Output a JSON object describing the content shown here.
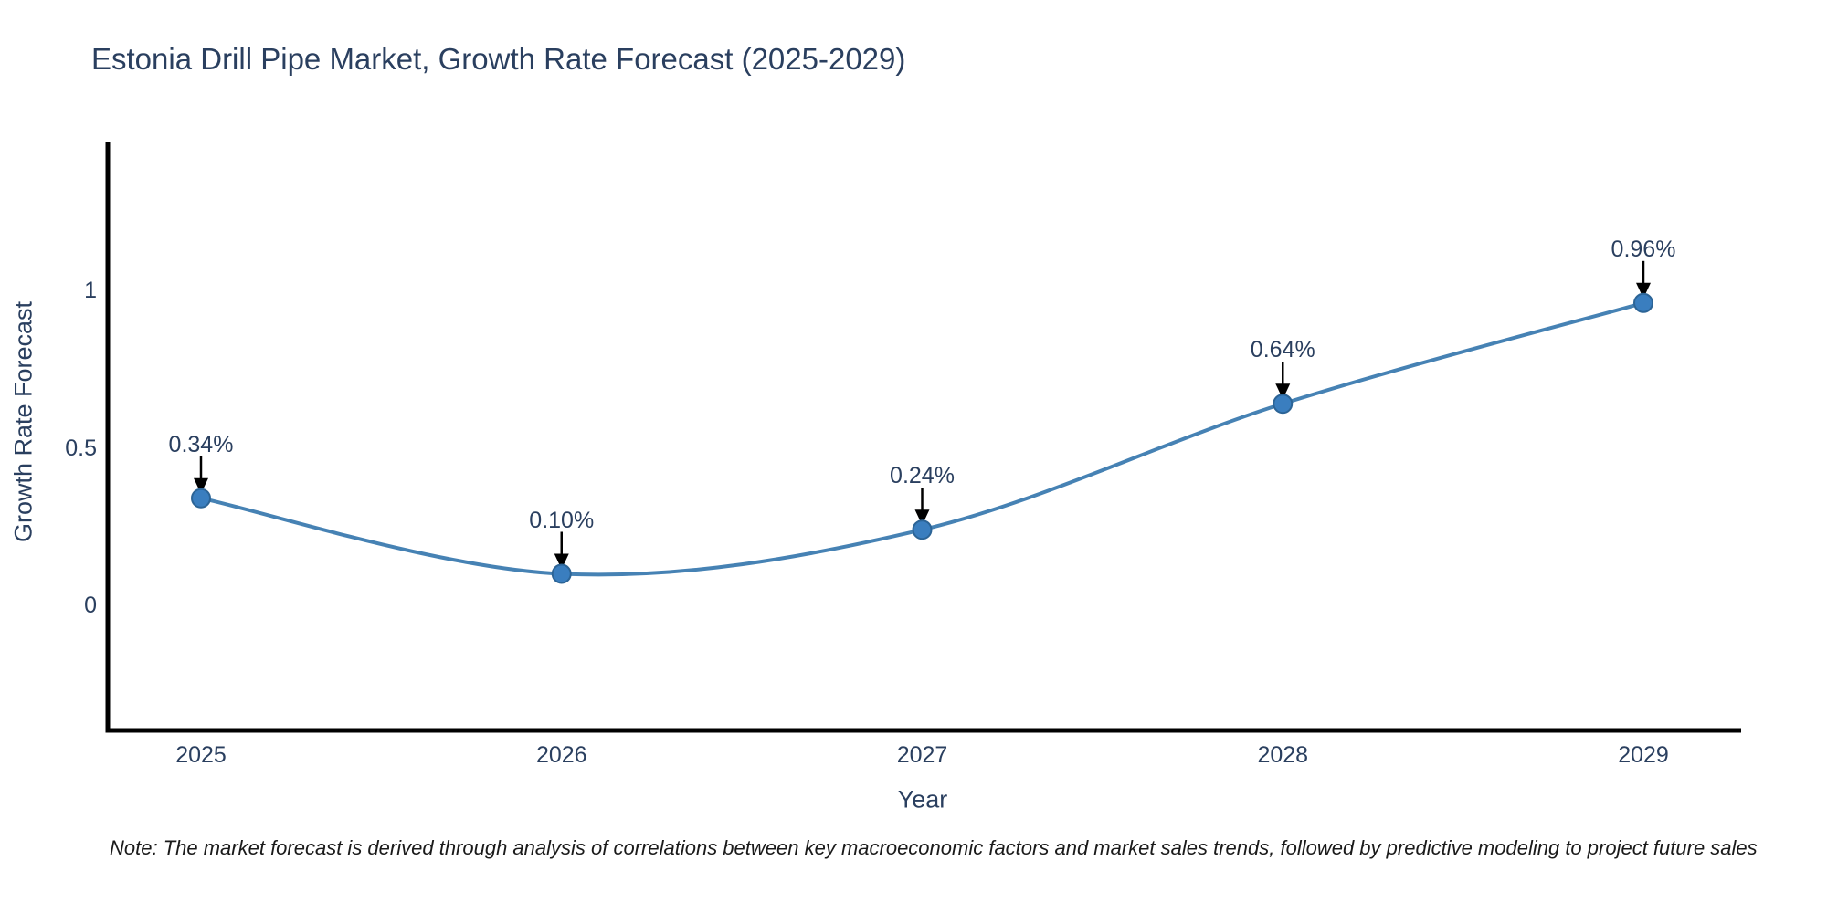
{
  "title": "Estonia Drill Pipe Market, Growth Rate Forecast (2025-2029)",
  "note": "Note: The market forecast is derived through analysis of correlations between key macroeconomic factors and market sales trends, followed by predictive modeling to project future sales",
  "chart_data": {
    "type": "line",
    "line_shape": "spline",
    "title": "Estonia Drill Pipe Market, Growth Rate Forecast (2025-2029)",
    "xlabel": "Year",
    "ylabel": "Growth Rate Forecast",
    "x": [
      2025,
      2026,
      2027,
      2028,
      2029
    ],
    "y": [
      0.34,
      0.1,
      0.24,
      0.64,
      0.96
    ],
    "series": [
      {
        "name": "Growth Rate Forecast",
        "values": [
          0.34,
          0.1,
          0.24,
          0.64,
          0.96
        ]
      }
    ],
    "point_labels": [
      "0.34%",
      "0.10%",
      "0.24%",
      "0.64%",
      "0.96%"
    ],
    "xtick_labels": [
      "2025",
      "2026",
      "2027",
      "2028",
      "2029"
    ],
    "yticks": [
      0,
      0.5,
      1
    ],
    "ytick_labels": [
      "0",
      "0.5",
      "1"
    ],
    "xlim": [
      2024.73,
      2029.27
    ],
    "ylim": [
      -0.4,
      1.47
    ],
    "grid": false,
    "legend_position": "none",
    "colors": {
      "line": "#4682b4",
      "marker_fill": "#3a7ebf",
      "marker_edge": "#2c6496",
      "axis": "#000000",
      "arrow": "#000000",
      "text": "#2a3f5f",
      "note_text": "#1a1a1a",
      "background": "#ffffff"
    }
  }
}
